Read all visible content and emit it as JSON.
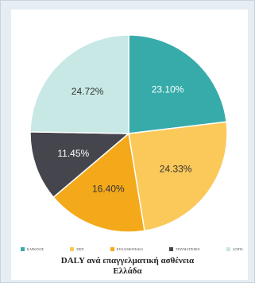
{
  "chart_data": {
    "type": "pie",
    "title": "DALY ανά επαγγελματική ασθένεια",
    "subtitle": "Ελλάδα",
    "categories": [
      "ΚΑΡΚΙΝΟΣ",
      "ΜΣΠ",
      "ΚΥΚΛΟΦΟΡΙΑΚΟ",
      "ΤΡΑΥΜΑΤΙΣΜΟΙ",
      "ΛΟΙΠΑ"
    ],
    "values": [
      23.1,
      24.33,
      16.4,
      11.45,
      24.72
    ],
    "labels": [
      "23.10%",
      "24.33%",
      "16.40%",
      "11.45%",
      "24.72%"
    ],
    "colors": [
      "#36abaa",
      "#fbc85a",
      "#f4a91a",
      "#45454e",
      "#c7e8e5"
    ],
    "label_colors": [
      "#ffffff",
      "#333333",
      "#333333",
      "#ffffff",
      "#333333"
    ],
    "legend_position": "bottom",
    "start_angle_deg": 0,
    "direction": "clockwise"
  }
}
